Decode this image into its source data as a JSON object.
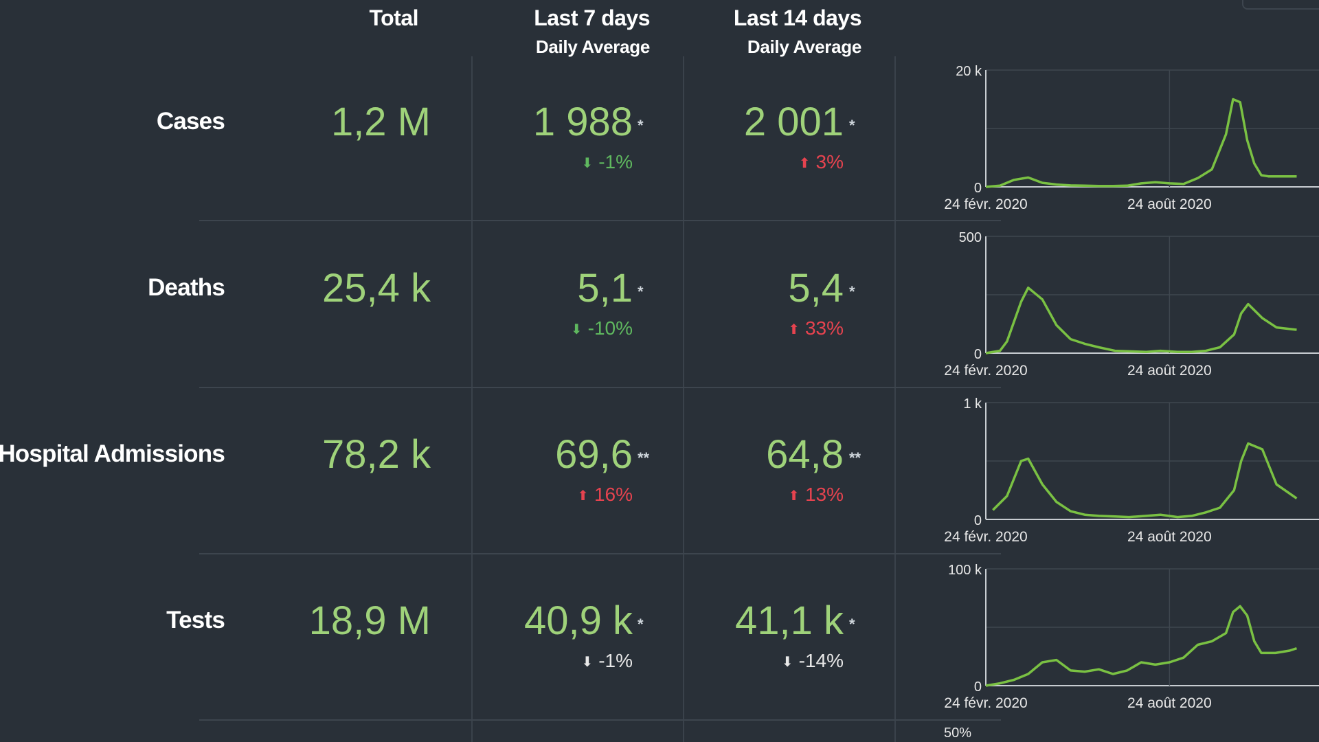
{
  "headers": {
    "total": "Total",
    "last7": "Last 7 days",
    "last7_sub": "Daily Average",
    "last14": "Last 14 days",
    "last14_sub": "Daily Average"
  },
  "rows": [
    {
      "label": "Cases",
      "total": "1,2 M",
      "avg7": "1 988",
      "avg7_mark": "*",
      "chg7": "-1%",
      "chg7_dir": "down",
      "avg14": "2 001",
      "avg14_mark": "*",
      "chg14": "3%",
      "chg14_dir": "up"
    },
    {
      "label": "Deaths",
      "total": "25,4 k",
      "avg7": "5,1",
      "avg7_mark": "*",
      "chg7": "-10%",
      "chg7_dir": "down",
      "avg14": "5,4",
      "avg14_mark": "*",
      "chg14": "33%",
      "chg14_dir": "up"
    },
    {
      "label": "Hospital Admissions",
      "total": "78,2 k",
      "avg7": "69,6",
      "avg7_mark": "**",
      "chg7": "16%",
      "chg7_dir": "up",
      "avg14": "64,8",
      "avg14_mark": "**",
      "chg14": "13%",
      "chg14_dir": "up"
    },
    {
      "label": "Tests",
      "total": "18,9 M",
      "avg7": "40,9 k",
      "avg7_mark": "*",
      "chg7": "-1%",
      "chg7_dir": "neutral",
      "avg14": "41,1 k",
      "avg14_mark": "*",
      "chg14": "-14%",
      "chg14_dir": "neutral"
    }
  ],
  "colors": {
    "background": "#293038",
    "value_green": "#9fd27a",
    "up_red": "#e6434f",
    "down_green": "#5fb85f",
    "line_green": "#7ac143"
  },
  "icons": {
    "up": "arrow-up-icon",
    "down": "arrow-down-icon"
  },
  "extra_tick": "50%",
  "chart_data": [
    {
      "type": "line",
      "ylim": [
        0,
        20000
      ],
      "yticks": [
        "20 k",
        "0"
      ],
      "xticks": [
        "24 févr. 2020",
        "24 août 2020"
      ],
      "x_range": [
        "2020-02-24",
        "2021-03-01"
      ],
      "series": [
        {
          "x": [
            "2020-02-24",
            "2020-03-09",
            "2020-03-23",
            "2020-04-06",
            "2020-04-20",
            "2020-05-04",
            "2020-05-18",
            "2020-06-01",
            "2020-06-15",
            "2020-06-29",
            "2020-07-13",
            "2020-07-27",
            "2020-08-10",
            "2020-08-24",
            "2020-09-07",
            "2020-09-21",
            "2020-10-05",
            "2020-10-19",
            "2020-10-26",
            "2020-11-02",
            "2020-11-09",
            "2020-11-16",
            "2020-11-23",
            "2020-11-30",
            "2020-12-14",
            "2020-12-28"
          ],
          "values": [
            0,
            200,
            1200,
            1600,
            700,
            400,
            250,
            200,
            150,
            150,
            200,
            600,
            800,
            600,
            500,
            1500,
            3000,
            9000,
            15000,
            14500,
            8000,
            4000,
            2000,
            1800,
            1800,
            1800
          ]
        }
      ]
    },
    {
      "type": "line",
      "ylim": [
        0,
        500
      ],
      "yticks": [
        "500",
        "0"
      ],
      "xticks": [
        "24 févr. 2020",
        "24 août 2020"
      ],
      "x_range": [
        "2020-02-24",
        "2021-03-01"
      ],
      "series": [
        {
          "x": [
            "2020-02-24",
            "2020-03-09",
            "2020-03-16",
            "2020-03-30",
            "2020-04-06",
            "2020-04-20",
            "2020-05-04",
            "2020-05-18",
            "2020-06-01",
            "2020-06-15",
            "2020-07-01",
            "2020-08-01",
            "2020-08-15",
            "2020-09-01",
            "2020-09-15",
            "2020-09-29",
            "2020-10-13",
            "2020-10-27",
            "2020-11-03",
            "2020-11-10",
            "2020-11-24",
            "2020-12-08",
            "2020-12-28"
          ],
          "values": [
            0,
            10,
            50,
            220,
            280,
            230,
            120,
            60,
            40,
            25,
            10,
            5,
            10,
            5,
            5,
            10,
            25,
            80,
            170,
            210,
            150,
            110,
            100
          ]
        }
      ]
    },
    {
      "type": "line",
      "ylim": [
        0,
        1000
      ],
      "yticks": [
        "1 k",
        "0"
      ],
      "xticks": [
        "24 févr. 2020",
        "24 août 2020"
      ],
      "x_range": [
        "2020-02-24",
        "2021-03-01"
      ],
      "series": [
        {
          "x": [
            "2020-03-02",
            "2020-03-16",
            "2020-03-30",
            "2020-04-06",
            "2020-04-20",
            "2020-05-04",
            "2020-05-18",
            "2020-06-01",
            "2020-06-15",
            "2020-07-01",
            "2020-07-15",
            "2020-08-01",
            "2020-08-15",
            "2020-09-01",
            "2020-09-15",
            "2020-09-29",
            "2020-10-06",
            "2020-10-13",
            "2020-10-27",
            "2020-11-03",
            "2020-11-10",
            "2020-11-24",
            "2020-12-08",
            "2020-12-28"
          ],
          "values": [
            80,
            200,
            500,
            520,
            300,
            150,
            70,
            40,
            30,
            25,
            20,
            30,
            40,
            20,
            30,
            60,
            80,
            100,
            250,
            500,
            650,
            600,
            300,
            180
          ]
        }
      ]
    },
    {
      "type": "line",
      "ylim": [
        0,
        100000
      ],
      "yticks": [
        "100 k",
        "0"
      ],
      "xticks": [
        "24 févr. 2020",
        "24 août 2020"
      ],
      "x_range": [
        "2020-02-24",
        "2021-03-01"
      ],
      "series": [
        {
          "x": [
            "2020-02-24",
            "2020-03-09",
            "2020-03-23",
            "2020-04-06",
            "2020-04-20",
            "2020-05-04",
            "2020-05-18",
            "2020-06-01",
            "2020-06-15",
            "2020-06-29",
            "2020-07-13",
            "2020-07-27",
            "2020-08-10",
            "2020-08-24",
            "2020-09-07",
            "2020-09-21",
            "2020-10-05",
            "2020-10-19",
            "2020-10-26",
            "2020-11-02",
            "2020-11-09",
            "2020-11-16",
            "2020-11-23",
            "2020-12-07",
            "2020-12-21",
            "2020-12-28"
          ],
          "values": [
            0,
            2000,
            5000,
            10000,
            20000,
            22000,
            13000,
            12000,
            14000,
            10000,
            13000,
            20000,
            18000,
            20000,
            24000,
            35000,
            38000,
            45000,
            63000,
            68000,
            60000,
            38000,
            28000,
            28000,
            30000,
            32000
          ]
        }
      ]
    }
  ]
}
